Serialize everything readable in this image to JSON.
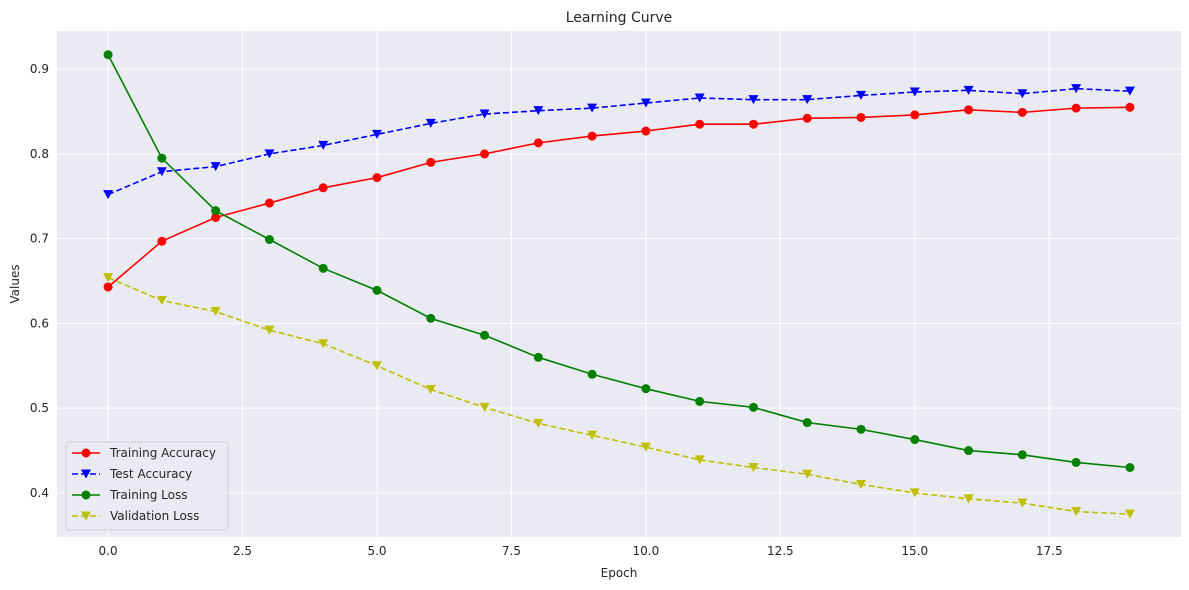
{
  "chart_data": {
    "type": "line",
    "title": "Learning Curve",
    "xlabel": "Epoch",
    "ylabel": "Values",
    "xlim": [
      -0.95,
      19.95
    ],
    "ylim": [
      0.348,
      0.945
    ],
    "xticks": [
      0.0,
      2.5,
      5.0,
      7.5,
      10.0,
      12.5,
      15.0,
      17.5
    ],
    "xtick_labels": [
      "0.0",
      "2.5",
      "5.0",
      "7.5",
      "10.0",
      "12.5",
      "15.0",
      "17.5"
    ],
    "yticks": [
      0.4,
      0.5,
      0.6,
      0.7,
      0.8,
      0.9
    ],
    "ytick_labels": [
      "0.4",
      "0.5",
      "0.6",
      "0.7",
      "0.8",
      "0.9"
    ],
    "grid": true,
    "legend_position": "lower-left",
    "x": [
      0,
      1,
      2,
      3,
      4,
      5,
      6,
      7,
      8,
      9,
      10,
      11,
      12,
      13,
      14,
      15,
      16,
      17,
      18,
      19
    ],
    "series": [
      {
        "name": "Training Accuracy",
        "color": "#ff0000",
        "dashed": false,
        "marker": "circle",
        "values": [
          0.643,
          0.697,
          0.725,
          0.742,
          0.76,
          0.772,
          0.79,
          0.8,
          0.813,
          0.821,
          0.827,
          0.835,
          0.835,
          0.842,
          0.843,
          0.846,
          0.852,
          0.849,
          0.854,
          0.855
        ]
      },
      {
        "name": "Test Accuracy",
        "color": "#0000ff",
        "dashed": true,
        "marker": "triangle-down",
        "values": [
          0.752,
          0.779,
          0.785,
          0.8,
          0.81,
          0.823,
          0.836,
          0.847,
          0.851,
          0.854,
          0.86,
          0.866,
          0.864,
          0.864,
          0.869,
          0.873,
          0.875,
          0.871,
          0.877,
          0.874
        ]
      },
      {
        "name": "Training Loss",
        "color": "#008000",
        "dashed": false,
        "marker": "circle",
        "values": [
          0.917,
          0.795,
          0.733,
          0.699,
          0.665,
          0.639,
          0.606,
          0.586,
          0.56,
          0.54,
          0.523,
          0.508,
          0.501,
          0.483,
          0.475,
          0.463,
          0.45,
          0.445,
          0.436,
          0.43
        ]
      },
      {
        "name": "Validation Loss",
        "color": "#bfbf00",
        "dashed": true,
        "marker": "triangle-down",
        "values": [
          0.654,
          0.627,
          0.614,
          0.592,
          0.576,
          0.55,
          0.522,
          0.501,
          0.482,
          0.468,
          0.454,
          0.439,
          0.43,
          0.422,
          0.41,
          0.4,
          0.393,
          0.388,
          0.378,
          0.375
        ]
      }
    ]
  }
}
